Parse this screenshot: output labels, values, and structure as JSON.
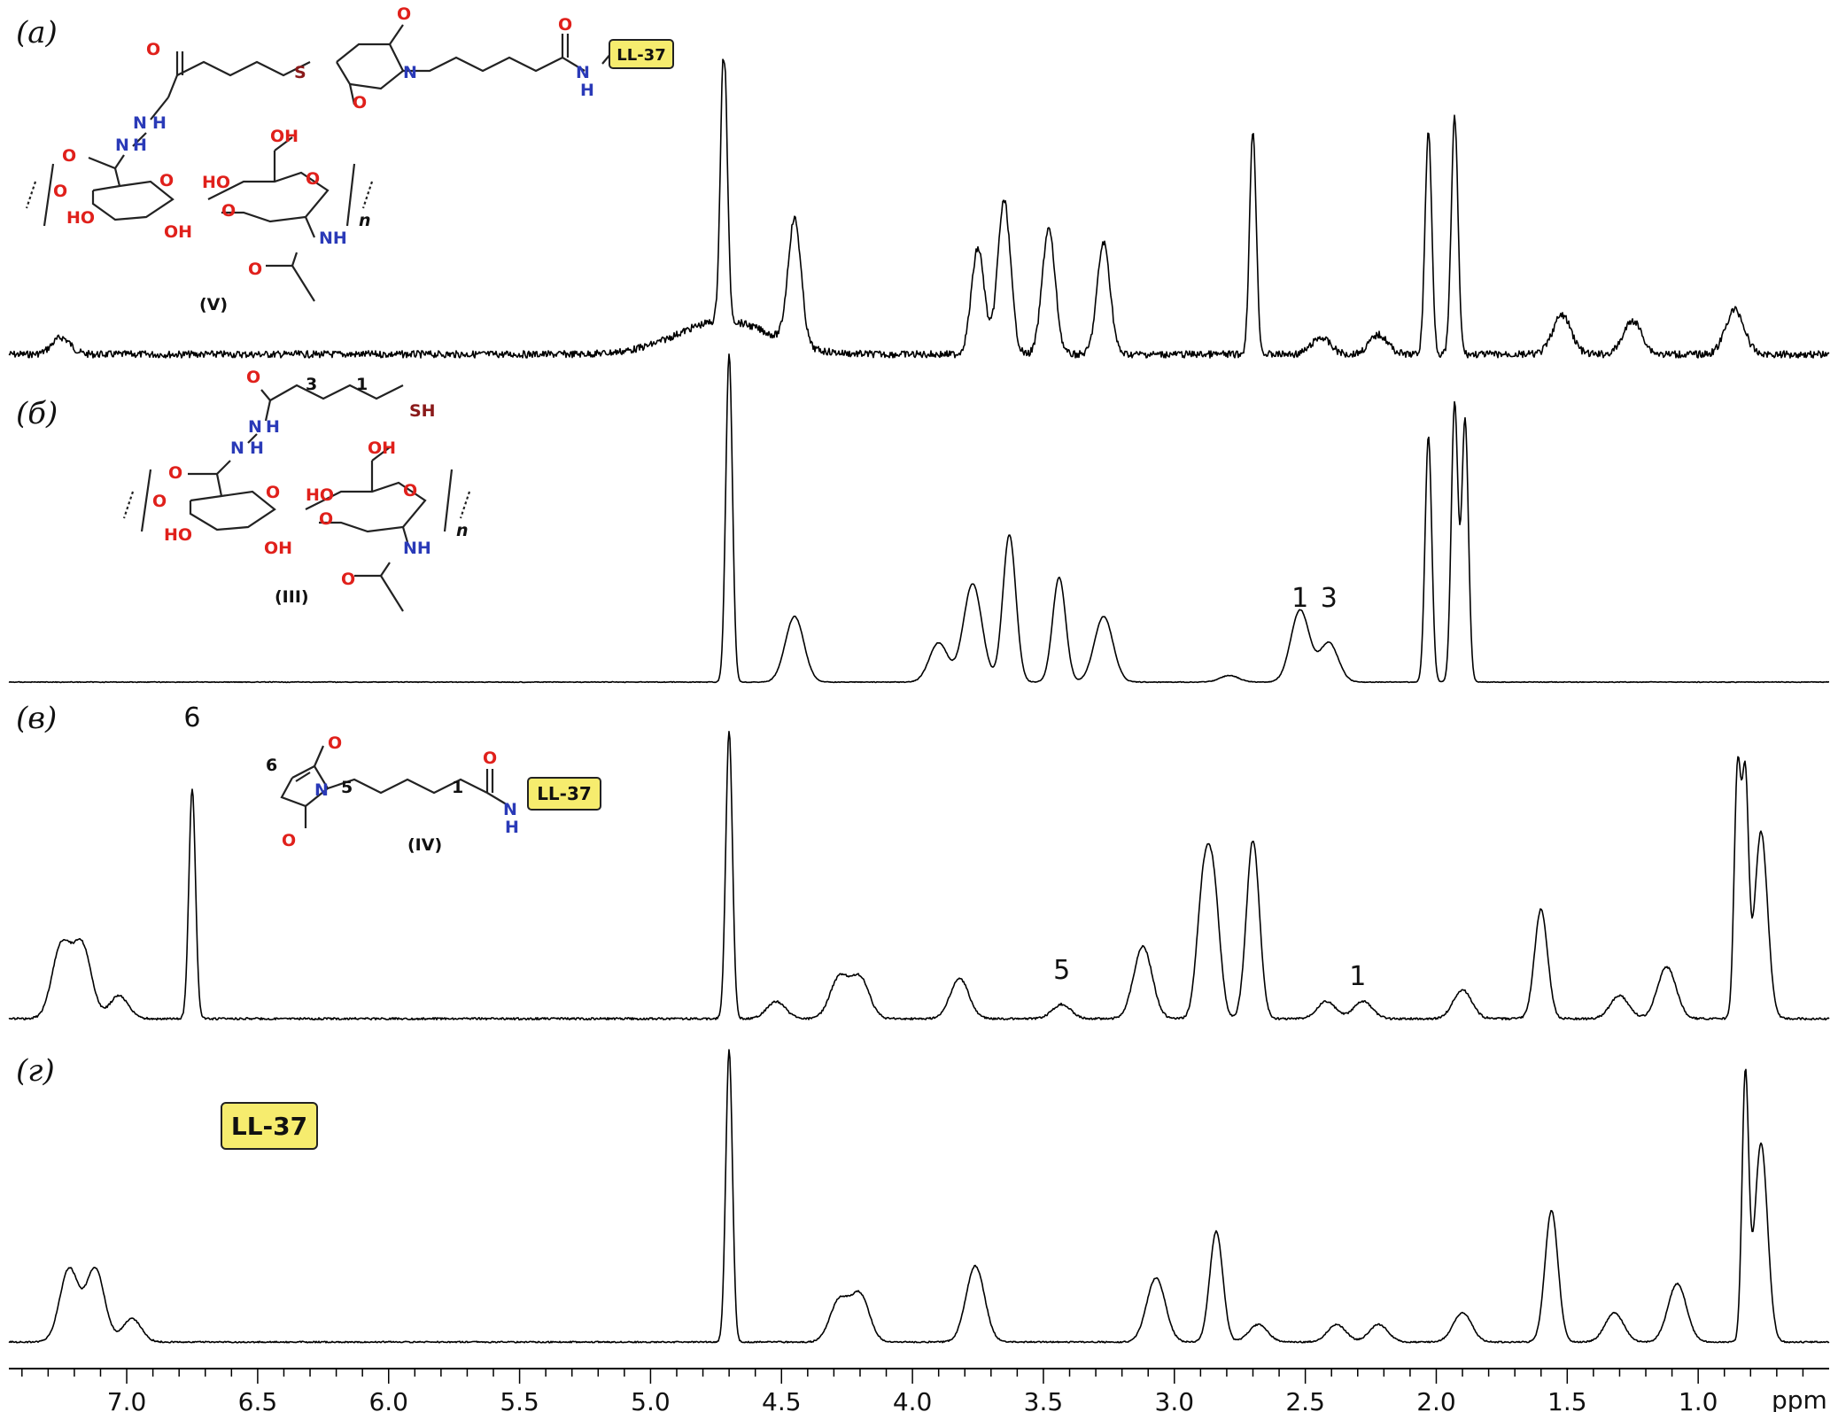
{
  "chart_data": [
    {
      "type": "line",
      "panel": "(а)",
      "compound_label": "(V)",
      "tag": "LL-37",
      "peaks": [
        {
          "ppm": 7.25,
          "h": 0.06
        },
        {
          "ppm": 4.72,
          "h": 1.0
        },
        {
          "ppm": 4.45,
          "h": 0.45
        },
        {
          "ppm": 3.75,
          "h": 0.38
        },
        {
          "ppm": 3.65,
          "h": 0.55
        },
        {
          "ppm": 3.48,
          "h": 0.45
        },
        {
          "ppm": 3.27,
          "h": 0.4
        },
        {
          "ppm": 2.7,
          "h": 0.8
        },
        {
          "ppm": 2.44,
          "h": 0.06
        },
        {
          "ppm": 2.22,
          "h": 0.07
        },
        {
          "ppm": 2.03,
          "h": 0.8
        },
        {
          "ppm": 1.93,
          "h": 0.85
        },
        {
          "ppm": 1.52,
          "h": 0.14
        },
        {
          "ppm": 1.25,
          "h": 0.12
        },
        {
          "ppm": 0.86,
          "h": 0.16
        }
      ]
    },
    {
      "type": "line",
      "panel": "(б)",
      "compound_label": "(III)",
      "peak_labels": [
        {
          "text": "1",
          "ppm": 2.52
        },
        {
          "text": "3",
          "ppm": 2.41
        }
      ],
      "peaks": [
        {
          "ppm": 4.7,
          "h": 1.0
        },
        {
          "ppm": 4.45,
          "h": 0.2
        },
        {
          "ppm": 3.9,
          "h": 0.12
        },
        {
          "ppm": 3.77,
          "h": 0.3
        },
        {
          "ppm": 3.63,
          "h": 0.45
        },
        {
          "ppm": 3.44,
          "h": 0.32
        },
        {
          "ppm": 3.27,
          "h": 0.2
        },
        {
          "ppm": 2.79,
          "h": 0.02
        },
        {
          "ppm": 2.52,
          "h": 0.22
        },
        {
          "ppm": 2.41,
          "h": 0.12
        },
        {
          "ppm": 2.03,
          "h": 0.75
        },
        {
          "ppm": 1.93,
          "h": 0.85
        },
        {
          "ppm": 1.89,
          "h": 0.8
        }
      ]
    },
    {
      "type": "line",
      "panel": "(в)",
      "compound_label": "(IV)",
      "tag": "LL-37",
      "peak_labels": [
        {
          "text": "6",
          "ppm": 6.75
        },
        {
          "text": "5",
          "ppm": 3.43
        },
        {
          "text": "1",
          "ppm": 2.3
        }
      ],
      "peaks": [
        {
          "ppm": 7.25,
          "h": 0.25
        },
        {
          "ppm": 7.17,
          "h": 0.25
        },
        {
          "ppm": 7.03,
          "h": 0.08
        },
        {
          "ppm": 6.75,
          "h": 0.8
        },
        {
          "ppm": 4.7,
          "h": 1.0
        },
        {
          "ppm": 4.52,
          "h": 0.06
        },
        {
          "ppm": 4.28,
          "h": 0.14
        },
        {
          "ppm": 4.2,
          "h": 0.14
        },
        {
          "ppm": 3.82,
          "h": 0.14
        },
        {
          "ppm": 3.43,
          "h": 0.05
        },
        {
          "ppm": 3.12,
          "h": 0.25
        },
        {
          "ppm": 2.89,
          "h": 0.42
        },
        {
          "ppm": 2.85,
          "h": 0.42
        },
        {
          "ppm": 2.7,
          "h": 0.62
        },
        {
          "ppm": 2.42,
          "h": 0.06
        },
        {
          "ppm": 2.28,
          "h": 0.06
        },
        {
          "ppm": 1.9,
          "h": 0.1
        },
        {
          "ppm": 1.6,
          "h": 0.38
        },
        {
          "ppm": 1.3,
          "h": 0.08
        },
        {
          "ppm": 1.12,
          "h": 0.18
        },
        {
          "ppm": 0.85,
          "h": 0.85
        },
        {
          "ppm": 0.82,
          "h": 0.8
        },
        {
          "ppm": 0.76,
          "h": 0.65
        }
      ]
    },
    {
      "type": "line",
      "panel": "(г)",
      "tag": "LL-37",
      "peaks": [
        {
          "ppm": 7.22,
          "h": 0.25
        },
        {
          "ppm": 7.12,
          "h": 0.25
        },
        {
          "ppm": 6.98,
          "h": 0.08
        },
        {
          "ppm": 4.7,
          "h": 1.0
        },
        {
          "ppm": 4.28,
          "h": 0.14
        },
        {
          "ppm": 4.2,
          "h": 0.16
        },
        {
          "ppm": 3.76,
          "h": 0.26
        },
        {
          "ppm": 3.07,
          "h": 0.22
        },
        {
          "ppm": 2.84,
          "h": 0.38
        },
        {
          "ppm": 2.68,
          "h": 0.06
        },
        {
          "ppm": 2.38,
          "h": 0.06
        },
        {
          "ppm": 2.22,
          "h": 0.06
        },
        {
          "ppm": 1.9,
          "h": 0.1
        },
        {
          "ppm": 1.56,
          "h": 0.45
        },
        {
          "ppm": 1.32,
          "h": 0.1
        },
        {
          "ppm": 1.08,
          "h": 0.2
        },
        {
          "ppm": 0.82,
          "h": 0.9
        },
        {
          "ppm": 0.76,
          "h": 0.68
        }
      ]
    }
  ],
  "axis": {
    "xlim": [
      7.45,
      0.5
    ],
    "ticks": [
      "7.0",
      "6.5",
      "6.0",
      "5.5",
      "5.0",
      "4.5",
      "4.0",
      "3.5",
      "3.0",
      "2.5",
      "2.0",
      "1.5",
      "1.0"
    ],
    "unit": "ppm"
  },
  "structures": {
    "a": {
      "atoms": [
        "O",
        "S",
        "O",
        "N",
        "O",
        "O",
        "N",
        "H",
        "N",
        "H",
        "O",
        "OH",
        "O",
        "HO",
        "O",
        "O",
        "HO",
        "OH",
        "NH",
        "O",
        "n"
      ],
      "tag": "LL-37"
    },
    "b": {
      "atoms": [
        "O",
        "3",
        "1",
        "SH",
        "N",
        "H",
        "N",
        "H",
        "O",
        "OH",
        "O",
        "HO",
        "O",
        "O",
        "HO",
        "OH",
        "NH",
        "O",
        "n"
      ]
    },
    "c": {
      "atoms": [
        "O",
        "6",
        "N",
        "5",
        "1",
        "O",
        "O",
        "N",
        "H"
      ],
      "tag": "LL-37"
    }
  }
}
